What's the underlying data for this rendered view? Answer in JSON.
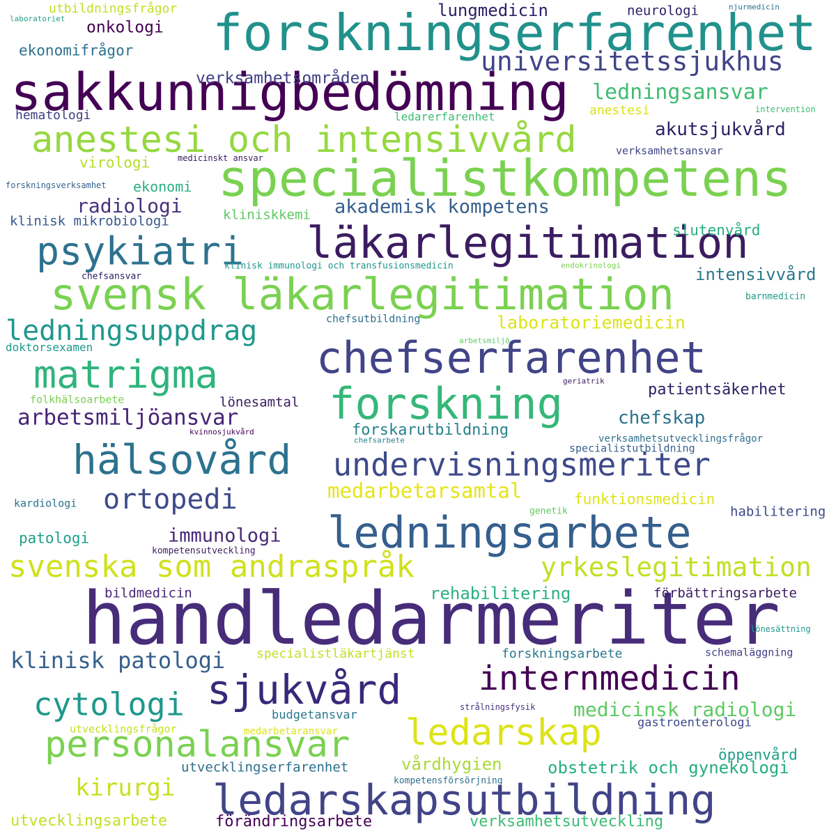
{
  "words": [
    {
      "text": "handledarmeriter",
      "color": "#472c7a"
    },
    {
      "text": "sakkunnigbedömning",
      "color": "#440154"
    },
    {
      "text": "forskningserfarenhet",
      "color": "#21918c"
    },
    {
      "text": "specialistkompetens",
      "color": "#7ad151"
    },
    {
      "text": "läkarlegitimation",
      "color": "#3b1c60"
    },
    {
      "text": "svensk läkarlegitimation",
      "color": "#7ad151"
    },
    {
      "text": "chefserfarenhet",
      "color": "#414487"
    },
    {
      "text": "ledningsarbete",
      "color": "#355f8d"
    },
    {
      "text": "anestesi och intensivvård",
      "color": "#95d840"
    },
    {
      "text": "forskning",
      "color": "#35b779"
    },
    {
      "text": "matrigma",
      "color": "#2fb47c"
    },
    {
      "text": "ledarskapsutbildning",
      "color": "#414487"
    },
    {
      "text": "sjukvård",
      "color": "#39287a"
    },
    {
      "text": "hälsovård",
      "color": "#2c728e"
    },
    {
      "text": "undervisningsmeriter",
      "color": "#3e4a89"
    },
    {
      "text": "ledarskap",
      "color": "#dde318"
    },
    {
      "text": "personalansvar",
      "color": "#7ad151"
    },
    {
      "text": "internmedicin",
      "color": "#440154"
    },
    {
      "text": "svenska som andraspråk",
      "color": "#d0e11c"
    },
    {
      "text": "psykiatri",
      "color": "#2c728e"
    },
    {
      "text": "ledningsuppdrag",
      "color": "#1f988b"
    },
    {
      "text": "universitetssjukhus",
      "color": "#414487"
    },
    {
      "text": "ortopedi",
      "color": "#3e4a89"
    },
    {
      "text": "cytologi",
      "color": "#1f988b"
    },
    {
      "text": "yrkeslegitimation",
      "color": "#c2df23"
    },
    {
      "text": "kirurgi",
      "color": "#c8e020"
    },
    {
      "text": "klinisk patologi",
      "color": "#355f8d"
    },
    {
      "text": "medicinsk radiologi",
      "color": "#5ec962"
    },
    {
      "text": "ledningsansvar",
      "color": "#3fbc73"
    },
    {
      "text": "arbetsmiljöansvar",
      "color": "#482475"
    },
    {
      "text": "akademisk kompetens",
      "color": "#355f8d"
    },
    {
      "text": "laboratoriemedicin",
      "color": "#dde318"
    },
    {
      "text": "medarbetarsamtal",
      "color": "#e5e419"
    },
    {
      "text": "immunologi",
      "color": "#482878"
    },
    {
      "text": "radiologi",
      "color": "#46327e"
    },
    {
      "text": "lungmedicin",
      "color": "#2d1e65"
    },
    {
      "text": "onkologi",
      "color": "#440154"
    },
    {
      "text": "verksamhetsområden",
      "color": "#433e85"
    },
    {
      "text": "akutsjukvård",
      "color": "#2d1e65"
    },
    {
      "text": "chefskap",
      "color": "#2c728e"
    },
    {
      "text": "patientsäkerhet",
      "color": "#2d1e65"
    },
    {
      "text": "forskarutbildning",
      "color": "#26828e"
    },
    {
      "text": "obstetrik och gynekologi",
      "color": "#26ad81"
    },
    {
      "text": "rehabilitering",
      "color": "#2ab07f"
    },
    {
      "text": "utvecklingsarbete",
      "color": "#c2df23"
    },
    {
      "text": "förändringsarbete",
      "color": "#440154"
    },
    {
      "text": "verksamhetsutveckling",
      "color": "#3dbc74"
    },
    {
      "text": "utvecklingserfarenhet",
      "color": "#2d708e"
    },
    {
      "text": "vårdhygien",
      "color": "#a8db34"
    },
    {
      "text": "ekonomifrågor",
      "color": "#2c728e"
    },
    {
      "text": "intensivvård",
      "color": "#2a788e"
    },
    {
      "text": "funktionsmedicin",
      "color": "#dde318"
    },
    {
      "text": "slutenvård",
      "color": "#26ad81"
    },
    {
      "text": "patologi",
      "color": "#1f9e89"
    },
    {
      "text": "virologi",
      "color": "#b5de2b"
    },
    {
      "text": "ekonomi",
      "color": "#2ab07f"
    },
    {
      "text": "öppenvård",
      "color": "#1f9e89"
    },
    {
      "text": "neurologi",
      "color": "#2d1e65"
    },
    {
      "text": "lönesamtal",
      "color": "#3b1c60"
    },
    {
      "text": "bildmedicin",
      "color": "#482878"
    },
    {
      "text": "förbättringsarbete",
      "color": "#3b1c60"
    },
    {
      "text": "habilitering",
      "color": "#3e4a89"
    },
    {
      "text": "specialistläkartjänst",
      "color": "#c2df23"
    },
    {
      "text": "forskningsarbete",
      "color": "#2a788e"
    },
    {
      "text": "budgetansvar",
      "color": "#2a788e"
    },
    {
      "text": "gastroenterologi",
      "color": "#3e4a89"
    },
    {
      "text": "klinisk mikrobiologi",
      "color": "#38588c"
    },
    {
      "text": "kliniskkemi",
      "color": "#5ec962"
    },
    {
      "text": "utbildningsfrågor",
      "color": "#c2df23"
    },
    {
      "text": "hematologi",
      "color": "#433e85"
    },
    {
      "text": "ledarerfarenhet",
      "color": "#3fbc73"
    },
    {
      "text": "anestesi",
      "color": "#d8e219"
    },
    {
      "text": "verksamhetsansvar",
      "color": "#414487"
    },
    {
      "text": "doktorsexamen",
      "color": "#1f988b"
    },
    {
      "text": "chefsutbildning",
      "color": "#2d708e"
    },
    {
      "text": "folkhälsoarbete",
      "color": "#7ad151"
    },
    {
      "text": "verksamhetsutvecklingsfrågor",
      "color": "#2d708e"
    },
    {
      "text": "specialistutbildning",
      "color": "#355f8d"
    },
    {
      "text": "kardiologi",
      "color": "#2c728e"
    },
    {
      "text": "schemaläggning",
      "color": "#433e85"
    },
    {
      "text": "utvecklingsfrågor",
      "color": "#c8e020"
    },
    {
      "text": "medarbetaransvar",
      "color": "#dde318"
    },
    {
      "text": "kompetensutveckling",
      "color": "#3b1c60"
    },
    {
      "text": "kompetensförsörjning",
      "color": "#2d708e"
    },
    {
      "text": "genetik",
      "color": "#5ec962"
    },
    {
      "text": "lönesättning",
      "color": "#1f988b"
    },
    {
      "text": "strålningsfysik",
      "color": "#46327e"
    },
    {
      "text": "medicinskt ansvar",
      "color": "#3b1c60"
    },
    {
      "text": "forskningsverksamhet",
      "color": "#355f8d"
    },
    {
      "text": "klinisk immunologi och transfusionsmedicin",
      "color": "#1f988b"
    },
    {
      "text": "chefsansvar",
      "color": "#2d1e65"
    },
    {
      "text": "barnmedicin",
      "color": "#1f988b"
    },
    {
      "text": "endokrinologi",
      "color": "#7ad151"
    },
    {
      "text": "intervention",
      "color": "#3fbc73"
    },
    {
      "text": "laboratoriet",
      "color": "#1f9e89"
    },
    {
      "text": "njurmedicin",
      "color": "#2c728e"
    },
    {
      "text": "arbetsmiljö",
      "color": "#5ec962"
    },
    {
      "text": "geriatrik",
      "color": "#3b1c60"
    },
    {
      "text": "kvinnosjukvård",
      "color": "#440154"
    },
    {
      "text": "chefsarbete",
      "color": "#26828e"
    }
  ]
}
